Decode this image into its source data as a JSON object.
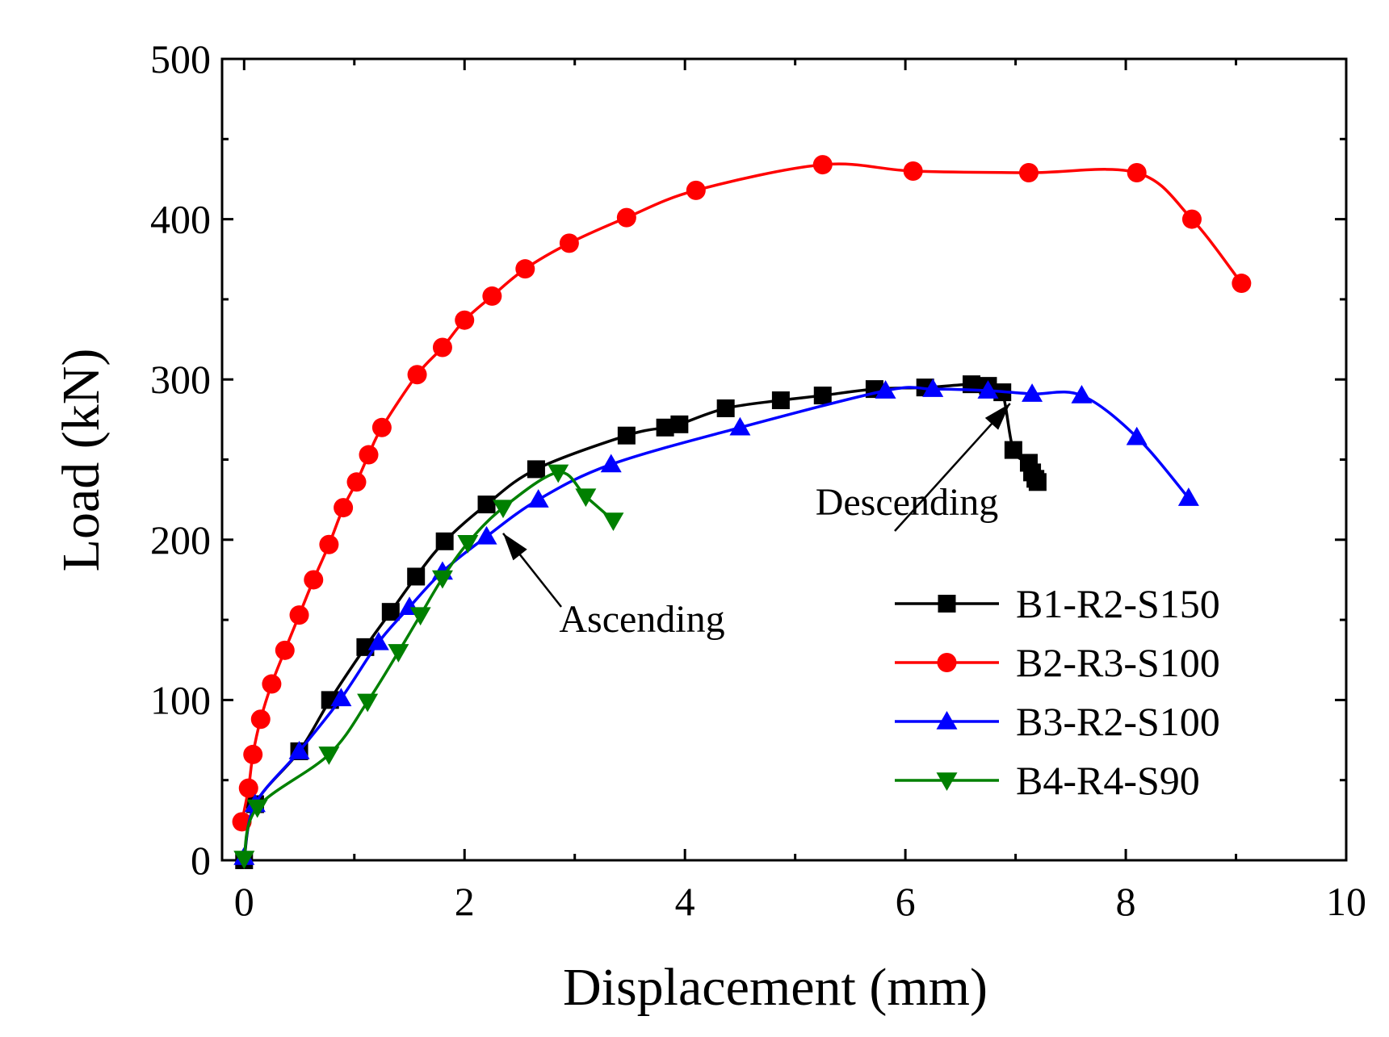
{
  "chart_data": {
    "type": "line",
    "title": "",
    "xlabel": "Displacement  (mm)",
    "ylabel": "Load  (kN)",
    "xlim": [
      -0.2,
      10
    ],
    "ylim": [
      0,
      500
    ],
    "x_ticks": [
      0,
      2,
      4,
      6,
      8,
      10
    ],
    "y_ticks": [
      0,
      100,
      200,
      300,
      400,
      500
    ],
    "grid": false,
    "legend_position": "lower-right",
    "series": [
      {
        "name": "B1-R2-S150",
        "color": "#000000",
        "marker": "square",
        "x": [
          0,
          0.1,
          0.5,
          0.78,
          1.1,
          1.33,
          1.56,
          1.82,
          2.2,
          2.65,
          3.47,
          3.82,
          3.95,
          4.37,
          4.87,
          5.25,
          5.72,
          6.18,
          6.6,
          6.75,
          6.88,
          6.98,
          7.12,
          7.15,
          7.18,
          7.2
        ],
        "y": [
          0,
          35,
          68,
          100,
          133,
          155,
          177,
          199,
          222,
          244,
          265,
          270,
          272,
          282,
          287,
          290,
          294,
          295,
          297,
          296,
          292,
          256,
          248,
          242,
          238,
          236
        ]
      },
      {
        "name": "B2-R3-S100",
        "color": "#ff0000",
        "marker": "circle",
        "x": [
          -0.02,
          0.04,
          0.08,
          0.15,
          0.25,
          0.37,
          0.5,
          0.63,
          0.77,
          0.9,
          1.02,
          1.13,
          1.25,
          1.57,
          1.8,
          2.0,
          2.25,
          2.55,
          2.95,
          3.47,
          4.1,
          5.25,
          6.07,
          7.12,
          8.1,
          8.6,
          9.05
        ],
        "y": [
          24,
          45,
          66,
          88,
          110,
          131,
          153,
          175,
          197,
          220,
          236,
          253,
          270,
          303,
          320,
          337,
          352,
          369,
          385,
          401,
          418,
          434,
          430,
          429,
          429,
          400,
          360
        ]
      },
      {
        "name": "B3-R2-S100",
        "color": "#0000ff",
        "marker": "triangle-up",
        "x": [
          0,
          0.1,
          0.5,
          0.88,
          1.22,
          1.5,
          1.8,
          2.2,
          2.67,
          3.33,
          4.5,
          5.82,
          6.25,
          6.75,
          7.15,
          7.6,
          8.1,
          8.57
        ],
        "y": [
          2,
          35,
          68,
          101,
          136,
          158,
          180,
          202,
          225,
          247,
          270,
          293,
          294,
          293,
          291,
          290,
          264,
          226
        ]
      },
      {
        "name": "B4-R4-S90",
        "color": "#008000",
        "marker": "triangle-down",
        "x": [
          0,
          0.12,
          0.77,
          1.12,
          1.4,
          1.6,
          1.8,
          2.03,
          2.35,
          2.85,
          3.1,
          3.35
        ],
        "y": [
          1,
          33,
          66,
          99,
          130,
          153,
          176,
          198,
          220,
          242,
          227,
          212
        ]
      }
    ],
    "annotations": [
      {
        "text": "Ascending",
        "point_at": [
          2.35,
          204
        ]
      },
      {
        "text": "Descending",
        "point_at": [
          6.95,
          285
        ]
      }
    ]
  }
}
